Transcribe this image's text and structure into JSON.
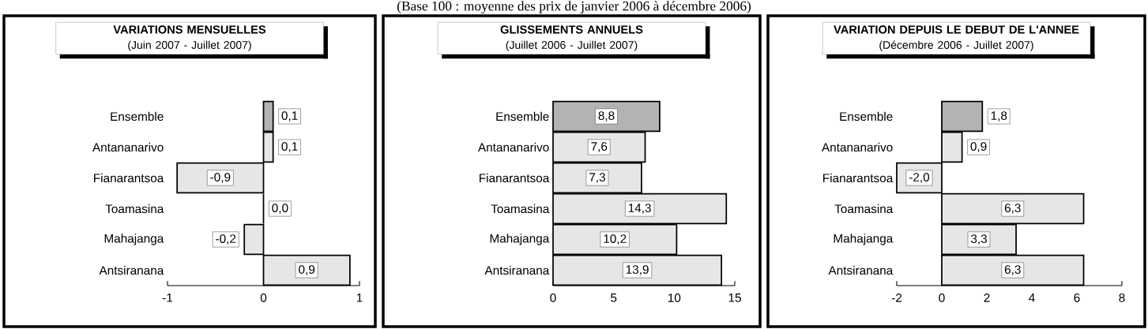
{
  "chart_data": [
    {
      "type": "bar",
      "orientation": "horizontal",
      "title": "VARIATIONS MENSUELLES",
      "subtitle": "(Juin 2007 - Juillet 2007)",
      "annotations": [
        "(Base 100 : moyenne des prix de janvier 2006 à décembre 2006)"
      ],
      "categories": [
        "Ensemble",
        "Antananarivo",
        "Fianarantsoa",
        "Toamasina",
        "Mahajanga",
        "Antsiranana"
      ],
      "values": [
        0.1,
        0.1,
        -0.9,
        0.0,
        -0.2,
        0.9
      ],
      "value_labels": [
        "0,1",
        "0,1",
        "-0,9",
        "0,0",
        "-0,2",
        "0,9"
      ],
      "colors": [
        "#b3b3b3",
        "#e6e6e6",
        "#e6e6e6",
        "#e6e6e6",
        "#e6e6e6",
        "#e6e6e6"
      ],
      "xlim": [
        -1,
        1
      ],
      "xticks": [
        -1,
        0,
        1
      ]
    },
    {
      "type": "bar",
      "orientation": "horizontal",
      "title": "GLISSEMENTS ANNUELS",
      "subtitle": "(Juillet 2006 - Juillet 2007)",
      "categories": [
        "Ensemble",
        "Antananarivo",
        "Fianarantsoa",
        "Toamasina",
        "Mahajanga",
        "Antsiranana"
      ],
      "values": [
        8.8,
        7.6,
        7.3,
        14.3,
        10.2,
        13.9
      ],
      "value_labels": [
        "8,8",
        "7,6",
        "7,3",
        "14,3",
        "10,2",
        "13,9"
      ],
      "colors": [
        "#b3b3b3",
        "#e6e6e6",
        "#e6e6e6",
        "#e6e6e6",
        "#e6e6e6",
        "#e6e6e6"
      ],
      "xlim": [
        0,
        15
      ],
      "xticks": [
        0,
        5,
        10,
        15
      ]
    },
    {
      "type": "bar",
      "orientation": "horizontal",
      "title": "VARIATION DEPUIS LE DEBUT DE L'ANNEE",
      "subtitle": "(Décembre 2006 -  Juillet 2007)",
      "categories": [
        "Ensemble",
        "Antananarivo",
        "Fianarantsoa",
        "Toamasina",
        "Mahajanga",
        "Antsiranana"
      ],
      "values": [
        1.8,
        0.9,
        -2.0,
        6.3,
        3.3,
        6.3
      ],
      "value_labels": [
        "1,8",
        "0,9",
        "-2,0",
        "6,3",
        "3,3",
        "6,3"
      ],
      "colors": [
        "#b3b3b3",
        "#e6e6e6",
        "#e6e6e6",
        "#e6e6e6",
        "#e6e6e6",
        "#e6e6e6"
      ],
      "xlim": [
        -2,
        8
      ],
      "xticks": [
        -2,
        0,
        2,
        4,
        6,
        8
      ]
    }
  ]
}
